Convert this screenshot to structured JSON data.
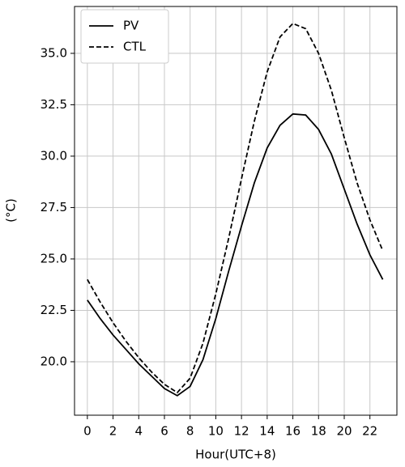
{
  "chart_data": {
    "type": "line",
    "x": [
      0,
      1,
      2,
      3,
      4,
      5,
      6,
      7,
      8,
      9,
      10,
      11,
      12,
      13,
      14,
      15,
      16,
      17,
      18,
      19,
      20,
      21,
      22,
      23
    ],
    "series": [
      {
        "name": "PV",
        "color": "#000000",
        "dash": "solid",
        "values": [
          23.0,
          22.1,
          21.3,
          20.6,
          19.9,
          19.3,
          18.7,
          18.35,
          18.8,
          20.1,
          22.1,
          24.4,
          26.6,
          28.7,
          30.4,
          31.5,
          32.05,
          32.0,
          31.3,
          30.1,
          28.4,
          26.7,
          25.2,
          24.0
        ]
      },
      {
        "name": "CTL",
        "color": "#000000",
        "dash": "dashed",
        "values": [
          24.0,
          22.9,
          21.9,
          21.0,
          20.2,
          19.5,
          18.9,
          18.5,
          19.2,
          20.9,
          23.3,
          26.0,
          28.9,
          31.7,
          34.1,
          35.8,
          36.45,
          36.2,
          35.0,
          33.2,
          30.9,
          28.7,
          26.9,
          25.4
        ]
      }
    ],
    "xlabel": "Hour(UTC+8)",
    "ylabel": "(°C)",
    "xlim": [
      -1.0,
      24.1
    ],
    "ylim": [
      17.4,
      37.28
    ],
    "xticks": [
      0,
      2,
      4,
      6,
      8,
      10,
      12,
      14,
      16,
      18,
      20,
      22
    ],
    "yticks": [
      {
        "value": 20,
        "label": "20.0"
      },
      {
        "value": 22.5,
        "label": "22.5"
      },
      {
        "value": 25,
        "label": "25.0"
      },
      {
        "value": 27.5,
        "label": "27.5"
      },
      {
        "value": 30,
        "label": "30.0"
      },
      {
        "value": 32.5,
        "label": "32.5"
      },
      {
        "value": 35,
        "label": "35.0"
      }
    ],
    "grid": true,
    "legend": "upper left"
  }
}
